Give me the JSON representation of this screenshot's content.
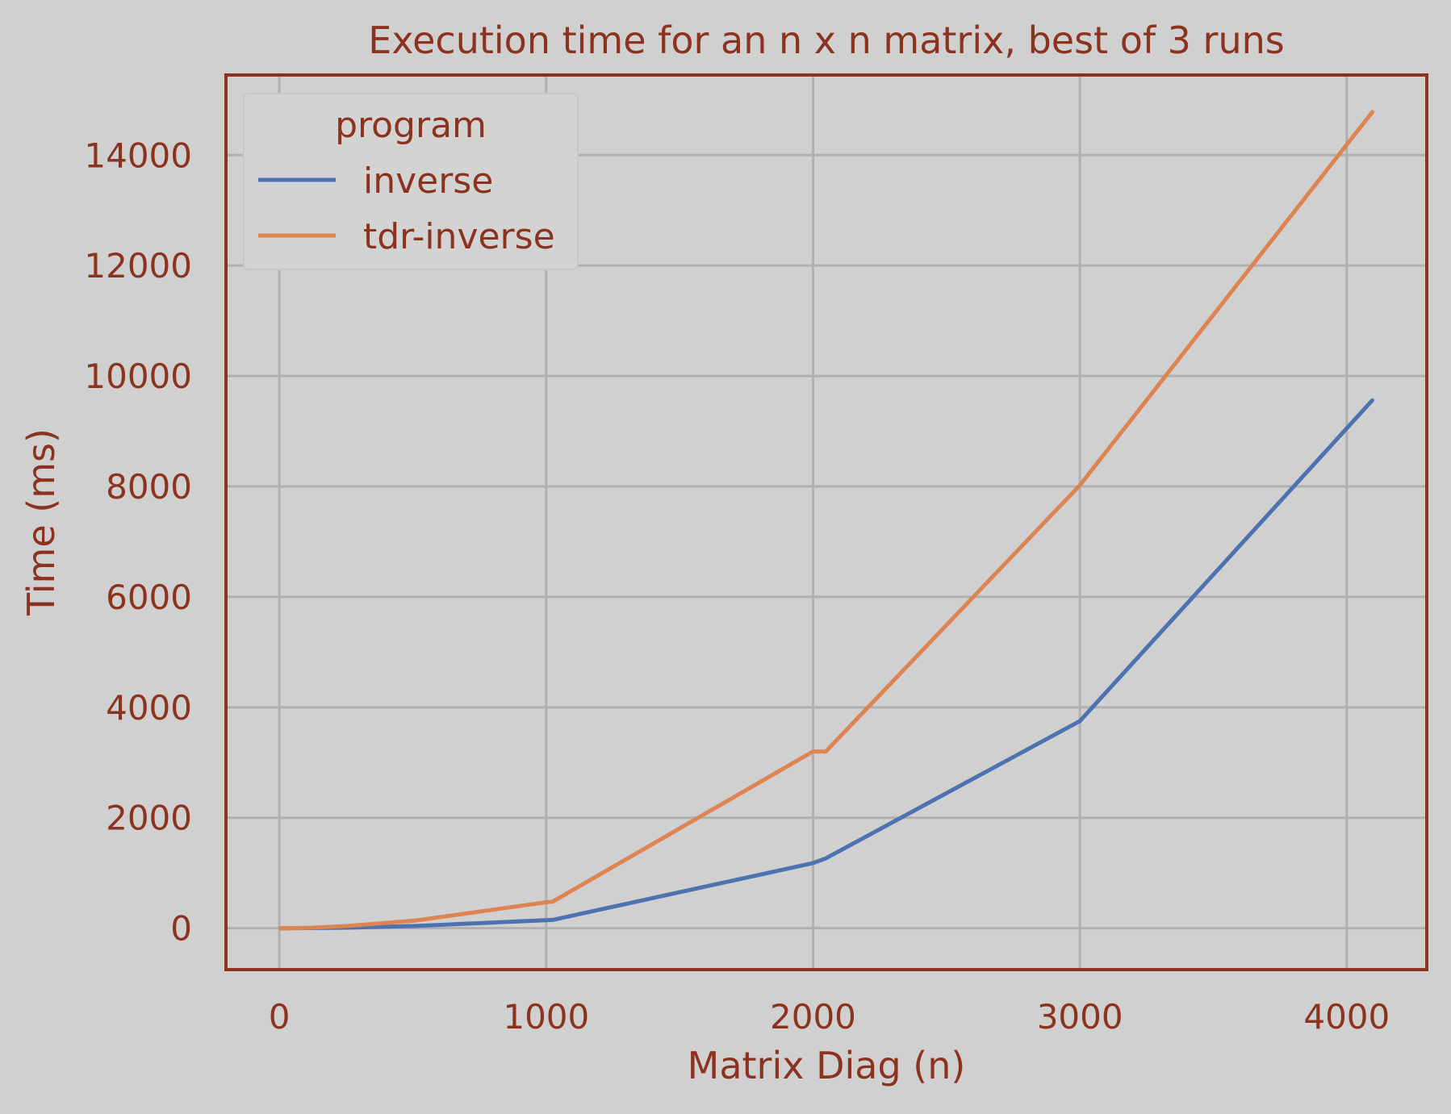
{
  "chart_data": {
    "type": "line",
    "title": "Execution time for an n x n matrix, best of 3 runs",
    "xlabel": "Matrix Diag (n)",
    "ylabel": "Time (ms)",
    "xlim": [
      -200,
      4300
    ],
    "ylim": [
      -750,
      15450
    ],
    "xticks": [
      0,
      1000,
      2000,
      3000,
      4000
    ],
    "yticks": [
      0,
      2000,
      4000,
      6000,
      8000,
      10000,
      12000,
      14000
    ],
    "grid": true,
    "legend": {
      "title": "program",
      "position": "top-left"
    },
    "series": [
      {
        "name": "inverse",
        "color": "#4c72b0",
        "x": [
          4,
          8,
          16,
          32,
          64,
          128,
          256,
          512,
          1000,
          1024,
          2000,
          2048,
          3000,
          4096
        ],
        "y": [
          0,
          0,
          0,
          0,
          1,
          3,
          10,
          40,
          145,
          150,
          1180,
          1265,
          3750,
          9560
        ]
      },
      {
        "name": "tdr-inverse",
        "color": "#dd8452",
        "x": [
          4,
          8,
          16,
          32,
          64,
          128,
          256,
          512,
          1000,
          1024,
          2000,
          2048,
          3000,
          4096
        ],
        "y": [
          0,
          0,
          0,
          1,
          3,
          10,
          40,
          140,
          470,
          480,
          3200,
          3200,
          8020,
          14780
        ]
      }
    ]
  }
}
